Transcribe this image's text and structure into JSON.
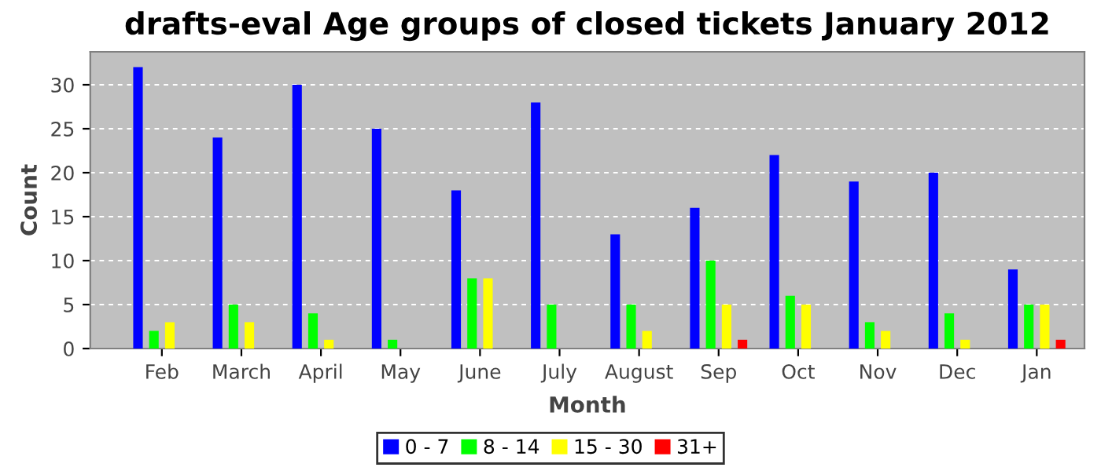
{
  "chart_data": {
    "type": "bar",
    "title": "drafts-eval Age groups of closed tickets January 2012",
    "xlabel": "Month",
    "ylabel": "Count",
    "categories": [
      "Feb",
      "March",
      "April",
      "May",
      "June",
      "July",
      "August",
      "Sep",
      "Oct",
      "Nov",
      "Dec",
      "Jan"
    ],
    "series": [
      {
        "name": "0 - 7",
        "color": "#0000ff",
        "values": [
          32,
          24,
          30,
          25,
          18,
          28,
          13,
          16,
          22,
          19,
          20,
          9
        ]
      },
      {
        "name": "8 - 14",
        "color": "#00ff00",
        "values": [
          2,
          5,
          4,
          1,
          8,
          5,
          5,
          10,
          6,
          3,
          4,
          5
        ]
      },
      {
        "name": "15 - 30",
        "color": "#ffff00",
        "values": [
          3,
          3,
          1,
          0,
          8,
          0,
          2,
          5,
          5,
          2,
          1,
          5
        ]
      },
      {
        "name": "31+",
        "color": "#ff0000",
        "values": [
          0,
          0,
          0,
          0,
          0,
          0,
          0,
          1,
          0,
          0,
          0,
          1
        ]
      }
    ],
    "ylim": [
      0,
      33.75
    ],
    "yticks": [
      0,
      5,
      10,
      15,
      20,
      25,
      30
    ],
    "grid": "y",
    "legend": "bottom"
  }
}
